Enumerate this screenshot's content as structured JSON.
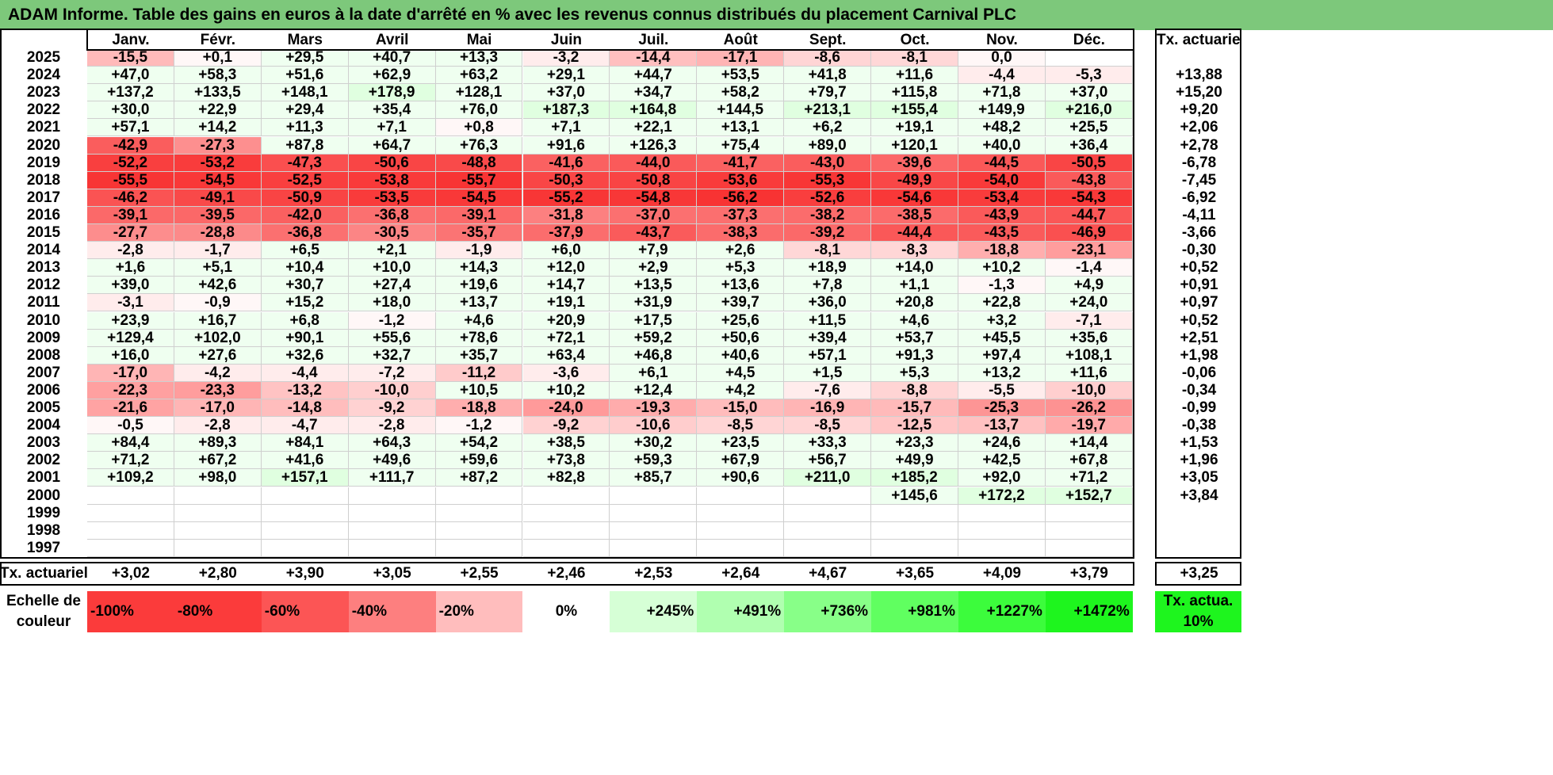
{
  "title": "ADAM Informe. Table des gains en euros à la date d'arrêté en % avec les revenus connus distribués du placement Carnival PLC",
  "months": [
    "Janv.",
    "Févr.",
    "Mars",
    "Avril",
    "Mai",
    "Juin",
    "Juil.",
    "Août",
    "Sept.",
    "Oct.",
    "Nov.",
    "Déc."
  ],
  "actuarial_header": "Tx. actuariel",
  "rows": [
    {
      "year": "2025",
      "values": [
        "-15,5",
        "+0,1",
        "+29,5",
        "+40,7",
        "+13,3",
        "-3,2",
        "-14,4",
        "-17,1",
        "-8,6",
        "-8,1",
        "0,0",
        ""
      ],
      "rate": ""
    },
    {
      "year": "2024",
      "values": [
        "+47,0",
        "+58,3",
        "+51,6",
        "+62,9",
        "+63,2",
        "+29,1",
        "+44,7",
        "+53,5",
        "+41,8",
        "+11,6",
        "-4,4",
        "-5,3"
      ],
      "rate": "+13,88"
    },
    {
      "year": "2023",
      "values": [
        "+137,2",
        "+133,5",
        "+148,1",
        "+178,9",
        "+128,1",
        "+37,0",
        "+34,7",
        "+58,2",
        "+79,7",
        "+115,8",
        "+71,8",
        "+37,0"
      ],
      "rate": "+15,20"
    },
    {
      "year": "2022",
      "values": [
        "+30,0",
        "+22,9",
        "+29,4",
        "+35,4",
        "+76,0",
        "+187,3",
        "+164,8",
        "+144,5",
        "+213,1",
        "+155,4",
        "+149,9",
        "+216,0"
      ],
      "rate": "+9,20"
    },
    {
      "year": "2021",
      "values": [
        "+57,1",
        "+14,2",
        "+11,3",
        "+7,1",
        "+0,8",
        "+7,1",
        "+22,1",
        "+13,1",
        "+6,2",
        "+19,1",
        "+48,2",
        "+25,5"
      ],
      "rate": "+2,06"
    },
    {
      "year": "2020",
      "values": [
        "-42,9",
        "-27,3",
        "+87,8",
        "+64,7",
        "+76,3",
        "+91,6",
        "+126,3",
        "+75,4",
        "+89,0",
        "+120,1",
        "+40,0",
        "+36,4"
      ],
      "rate": "+2,78"
    },
    {
      "year": "2019",
      "values": [
        "-52,2",
        "-53,2",
        "-47,3",
        "-50,6",
        "-48,8",
        "-41,6",
        "-44,0",
        "-41,7",
        "-43,0",
        "-39,6",
        "-44,5",
        "-50,5"
      ],
      "rate": "-6,78"
    },
    {
      "year": "2018",
      "values": [
        "-55,5",
        "-54,5",
        "-52,5",
        "-53,8",
        "-55,7",
        "-50,3",
        "-50,8",
        "-53,6",
        "-55,3",
        "-49,9",
        "-54,0",
        "-43,8"
      ],
      "rate": "-7,45"
    },
    {
      "year": "2017",
      "values": [
        "-46,2",
        "-49,1",
        "-50,9",
        "-53,5",
        "-54,5",
        "-55,2",
        "-54,8",
        "-56,2",
        "-52,6",
        "-54,6",
        "-53,4",
        "-54,3"
      ],
      "rate": "-6,92"
    },
    {
      "year": "2016",
      "values": [
        "-39,1",
        "-39,5",
        "-42,0",
        "-36,8",
        "-39,1",
        "-31,8",
        "-37,0",
        "-37,3",
        "-38,2",
        "-38,5",
        "-43,9",
        "-44,7"
      ],
      "rate": "-4,11"
    },
    {
      "year": "2015",
      "values": [
        "-27,7",
        "-28,8",
        "-36,8",
        "-30,5",
        "-35,7",
        "-37,9",
        "-43,7",
        "-38,3",
        "-39,2",
        "-44,4",
        "-43,5",
        "-46,9"
      ],
      "rate": "-3,66"
    },
    {
      "year": "2014",
      "values": [
        "-2,8",
        "-1,7",
        "+6,5",
        "+2,1",
        "-1,9",
        "+6,0",
        "+7,9",
        "+2,6",
        "-8,1",
        "-8,3",
        "-18,8",
        "-23,1"
      ],
      "rate": "-0,30"
    },
    {
      "year": "2013",
      "values": [
        "+1,6",
        "+5,1",
        "+10,4",
        "+10,0",
        "+14,3",
        "+12,0",
        "+2,9",
        "+5,3",
        "+18,9",
        "+14,0",
        "+10,2",
        "-1,4"
      ],
      "rate": "+0,52"
    },
    {
      "year": "2012",
      "values": [
        "+39,0",
        "+42,6",
        "+30,7",
        "+27,4",
        "+19,6",
        "+14,7",
        "+13,5",
        "+13,6",
        "+7,8",
        "+1,1",
        "-1,3",
        "+4,9"
      ],
      "rate": "+0,91"
    },
    {
      "year": "2011",
      "values": [
        "-3,1",
        "-0,9",
        "+15,2",
        "+18,0",
        "+13,7",
        "+19,1",
        "+31,9",
        "+39,7",
        "+36,0",
        "+20,8",
        "+22,8",
        "+24,0"
      ],
      "rate": "+0,97"
    },
    {
      "year": "2010",
      "values": [
        "+23,9",
        "+16,7",
        "+6,8",
        "-1,2",
        "+4,6",
        "+20,9",
        "+17,5",
        "+25,6",
        "+11,5",
        "+4,6",
        "+3,2",
        "-7,1"
      ],
      "rate": "+0,52"
    },
    {
      "year": "2009",
      "values": [
        "+129,4",
        "+102,0",
        "+90,1",
        "+55,6",
        "+78,6",
        "+72,1",
        "+59,2",
        "+50,6",
        "+39,4",
        "+53,7",
        "+45,5",
        "+35,6"
      ],
      "rate": "+2,51"
    },
    {
      "year": "2008",
      "values": [
        "+16,0",
        "+27,6",
        "+32,6",
        "+32,7",
        "+35,7",
        "+63,4",
        "+46,8",
        "+40,6",
        "+57,1",
        "+91,3",
        "+97,4",
        "+108,1"
      ],
      "rate": "+1,98"
    },
    {
      "year": "2007",
      "values": [
        "-17,0",
        "-4,2",
        "-4,4",
        "-7,2",
        "-11,2",
        "-3,6",
        "+6,1",
        "+4,5",
        "+1,5",
        "+5,3",
        "+13,2",
        "+11,6"
      ],
      "rate": "-0,06"
    },
    {
      "year": "2006",
      "values": [
        "-22,3",
        "-23,3",
        "-13,2",
        "-10,0",
        "+10,5",
        "+10,2",
        "+12,4",
        "+4,2",
        "-7,6",
        "-8,8",
        "-5,5",
        "-10,0"
      ],
      "rate": "-0,34"
    },
    {
      "year": "2005",
      "values": [
        "-21,6",
        "-17,0",
        "-14,8",
        "-9,2",
        "-18,8",
        "-24,0",
        "-19,3",
        "-15,0",
        "-16,9",
        "-15,7",
        "-25,3",
        "-26,2"
      ],
      "rate": "-0,99"
    },
    {
      "year": "2004",
      "values": [
        "-0,5",
        "-2,8",
        "-4,7",
        "-2,8",
        "-1,2",
        "-9,2",
        "-10,6",
        "-8,5",
        "-8,5",
        "-12,5",
        "-13,7",
        "-19,7"
      ],
      "rate": "-0,38"
    },
    {
      "year": "2003",
      "values": [
        "+84,4",
        "+89,3",
        "+84,1",
        "+64,3",
        "+54,2",
        "+38,5",
        "+30,2",
        "+23,5",
        "+33,3",
        "+23,3",
        "+24,6",
        "+14,4"
      ],
      "rate": "+1,53"
    },
    {
      "year": "2002",
      "values": [
        "+71,2",
        "+67,2",
        "+41,6",
        "+49,6",
        "+59,6",
        "+73,8",
        "+59,3",
        "+67,9",
        "+56,7",
        "+49,9",
        "+42,5",
        "+67,8"
      ],
      "rate": "+1,96"
    },
    {
      "year": "2001",
      "values": [
        "+109,2",
        "+98,0",
        "+157,1",
        "+111,7",
        "+87,2",
        "+82,8",
        "+85,7",
        "+90,6",
        "+211,0",
        "+185,2",
        "+92,0",
        "+71,2"
      ],
      "rate": "+3,05"
    },
    {
      "year": "2000",
      "values": [
        "",
        "",
        "",
        "",
        "",
        "",
        "",
        "",
        "",
        "+145,6",
        "+172,2",
        "+152,7"
      ],
      "rate": "+3,84"
    },
    {
      "year": "1999",
      "values": [
        "",
        "",
        "",
        "",
        "",
        "",
        "",
        "",
        "",
        "",
        "",
        ""
      ],
      "rate": ""
    },
    {
      "year": "1998",
      "values": [
        "",
        "",
        "",
        "",
        "",
        "",
        "",
        "",
        "",
        "",
        "",
        ""
      ],
      "rate": ""
    },
    {
      "year": "1997",
      "values": [
        "",
        "",
        "",
        "",
        "",
        "",
        "",
        "",
        "",
        "",
        "",
        ""
      ],
      "rate": ""
    }
  ],
  "totals": {
    "label": "Tx. actuariel",
    "values": [
      "+3,02",
      "+2,80",
      "+3,90",
      "+3,05",
      "+2,55",
      "+2,46",
      "+2,53",
      "+2,64",
      "+4,67",
      "+3,65",
      "+4,09",
      "+3,79"
    ],
    "rate": "+3,25"
  },
  "scale": {
    "label": "Echelle de couleur",
    "steps": [
      {
        "text": "-100%",
        "color": "#fb3b3b",
        "align": "left"
      },
      {
        "text": "-80%",
        "color": "#fb3b3b",
        "align": "left"
      },
      {
        "text": "-60%",
        "color": "#fc5555",
        "align": "left"
      },
      {
        "text": "-40%",
        "color": "#fd7f7f",
        "align": "left"
      },
      {
        "text": "-20%",
        "color": "#ffbdbd",
        "align": "left"
      },
      {
        "text": "0%",
        "color": "#ffffff",
        "align": "center"
      },
      {
        "text": "+245%",
        "color": "#d6ffd6",
        "align": "right"
      },
      {
        "text": "+491%",
        "color": "#b0ffb0",
        "align": "right"
      },
      {
        "text": "+736%",
        "color": "#88ff88",
        "align": "right"
      },
      {
        "text": "+981%",
        "color": "#60ff60",
        "align": "right"
      },
      {
        "text": "+1227%",
        "color": "#3cfc3c",
        "align": "right"
      },
      {
        "text": "+1472%",
        "color": "#1ef51e",
        "align": "right"
      }
    ],
    "rate_label": "Tx. actua. 10%",
    "rate_color": "#1ef51e"
  },
  "colors": {
    "title_bg": "#7dc87b",
    "negative_max": "#fa2d2d",
    "positive_light": "#e4ffe2"
  }
}
